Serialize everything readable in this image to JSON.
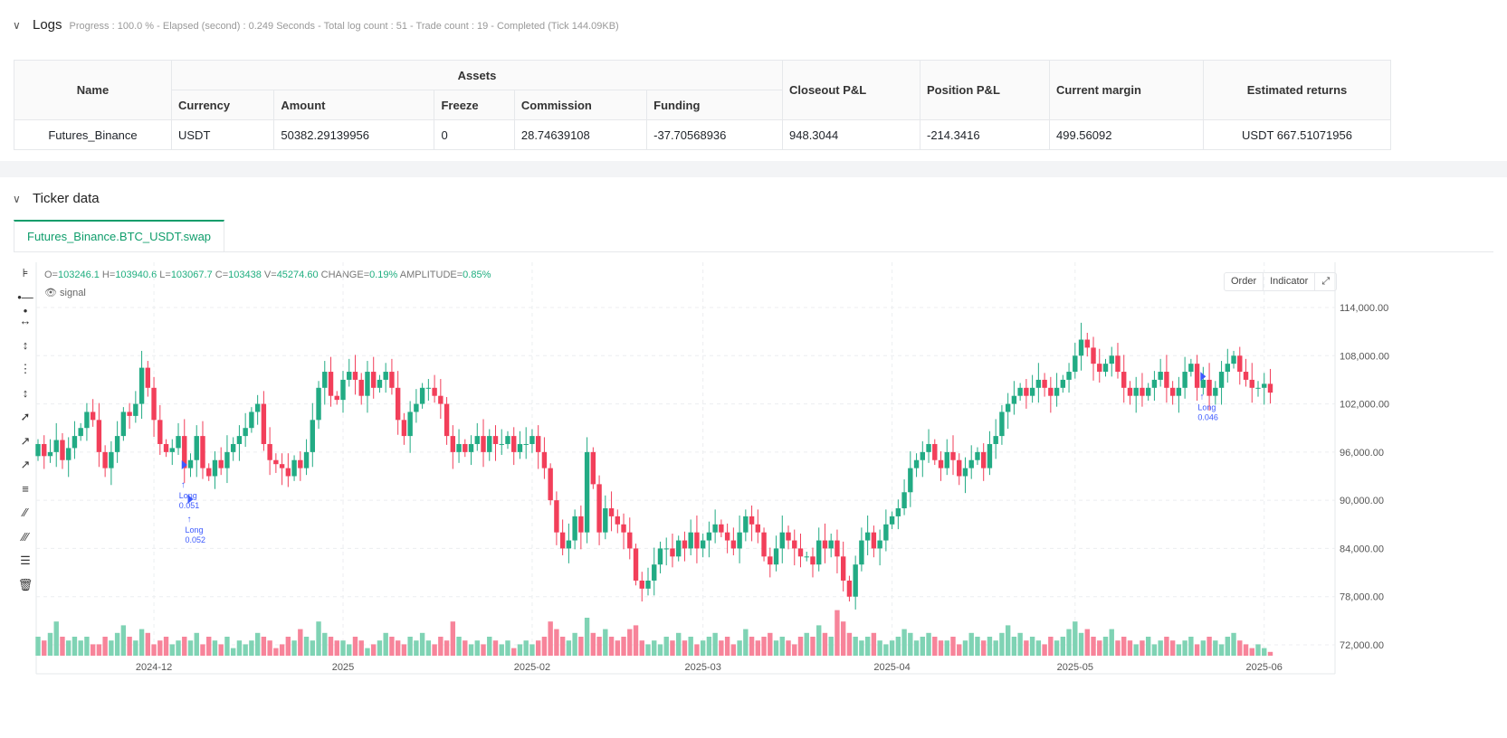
{
  "logs": {
    "title": "Logs",
    "summary": "Progress : 100.0 % - Elapsed (second) : 0.249  Seconds - Total log count : 51 - Trade count : 19 - Completed (Tick 144.09KB)",
    "headers": {
      "name": "Name",
      "assets": "Assets",
      "currency": "Currency",
      "amount": "Amount",
      "freeze": "Freeze",
      "commission": "Commission",
      "funding": "Funding",
      "closeout": "Closeout P&L",
      "position": "Position P&L",
      "margin": "Current margin",
      "returns": "Estimated returns"
    },
    "row": {
      "name": "Futures_Binance",
      "currency": "USDT",
      "amount": "50382.29139956",
      "freeze": "0",
      "commission": "28.74639108",
      "funding": "-37.70568936",
      "closeout": "948.3044",
      "position": "-214.3416",
      "margin": "499.56092",
      "returns": "USDT 667.51071956"
    }
  },
  "ticker": {
    "title": "Ticker data",
    "tab": "Futures_Binance.BTC_USDT.swap",
    "ohlc": {
      "o_label": "O=",
      "o": "103246.1",
      "h_label": " H=",
      "h": "103940.6",
      "l_label": " L=",
      "l": "103067.7",
      "c_label": " C=",
      "c": "103438",
      "v_label": " V=",
      "v": "45274.60",
      "chg_label": " CHANGE=",
      "chg": "0.19%",
      "amp_label": " AMPLITUDE=",
      "amp": "0.85%"
    },
    "signal": "signal",
    "order_btn": "Order",
    "indicator_btn": "Indicator"
  },
  "colors": {
    "up": "#22ab84",
    "down": "#f23f5a",
    "up_vol": "#7fd3b4",
    "down_vol": "#f7849a",
    "signal": "#3d5afe"
  },
  "chart_data": {
    "type": "candlestick",
    "symbol": "BTC_USDT",
    "ylim": [
      70000,
      117000
    ],
    "yticks": [
      72000,
      78000,
      84000,
      90000,
      96000,
      102000,
      108000,
      114000
    ],
    "ytick_labels": [
      "72,000.00",
      "78,000.00",
      "84,000.00",
      "90,000.00",
      "96,000.00",
      "102,000.00",
      "108,000.00",
      "114,000.00"
    ],
    "xticks": [
      {
        "label": "2024-12",
        "index": 19
      },
      {
        "label": "2025",
        "index": 50
      },
      {
        "label": "2025-02",
        "index": 81
      },
      {
        "label": "2025-03",
        "index": 109
      },
      {
        "label": "2025-04",
        "index": 140
      },
      {
        "label": "2025-05",
        "index": 170
      },
      {
        "label": "2025-06",
        "index": 201
      }
    ],
    "closes": [
      97,
      95.5,
      96,
      97.5,
      95,
      96.5,
      98,
      99,
      101,
      100,
      96,
      94,
      96,
      98,
      101,
      100.5,
      102,
      106.5,
      104,
      100,
      97,
      96,
      96.5,
      98,
      94,
      95,
      98,
      94,
      93,
      95,
      94,
      96,
      97,
      98,
      99,
      101,
      102,
      97,
      95,
      94.5,
      94,
      93,
      95,
      94,
      96,
      100,
      104,
      106,
      103,
      102.5,
      105,
      106,
      105,
      103,
      106,
      104,
      105,
      106,
      104,
      100,
      98,
      101,
      102,
      104,
      104,
      103,
      102,
      98,
      96,
      97,
      96,
      97,
      98,
      96,
      98,
      97,
      97,
      98,
      96,
      97,
      97,
      98,
      96,
      94,
      90,
      86,
      84,
      85,
      88,
      86,
      96,
      92,
      86,
      89,
      88,
      87,
      86,
      84,
      80,
      79,
      80,
      82,
      84,
      84,
      83,
      85,
      84,
      86,
      84,
      85,
      86,
      87,
      86,
      85,
      84,
      86,
      88,
      87,
      86,
      83,
      82,
      84,
      86,
      85,
      84,
      83,
      83,
      82,
      85,
      84,
      85,
      83,
      80,
      78,
      82,
      85,
      86,
      84,
      85,
      87,
      88,
      89,
      91,
      94,
      95,
      96,
      97,
      95,
      94,
      96,
      95,
      93,
      94,
      95,
      96,
      94,
      97,
      98,
      101,
      102,
      103,
      104,
      103,
      104,
      105,
      104,
      103,
      104,
      105,
      106,
      108,
      110,
      109,
      107,
      106,
      107,
      108,
      106,
      104,
      103,
      104,
      103,
      104,
      105,
      106,
      104,
      103,
      104,
      106,
      107,
      104,
      105,
      103,
      104,
      106,
      107,
      108,
      106,
      105,
      104,
      104,
      104.5,
      103.4
    ],
    "volumes": [
      5,
      4,
      6,
      9,
      5,
      4,
      5,
      4,
      5,
      3,
      3,
      5,
      4,
      6,
      8,
      5,
      4,
      7,
      6,
      3,
      4,
      5,
      3,
      4,
      5,
      4,
      6,
      3,
      5,
      4,
      3,
      5,
      2,
      4,
      3,
      4,
      6,
      5,
      4,
      2,
      3,
      5,
      4,
      7,
      5,
      4,
      9,
      6,
      5,
      4,
      4,
      3,
      5,
      4,
      2,
      3,
      4,
      6,
      5,
      4,
      3,
      5,
      4,
      6,
      4,
      3,
      5,
      4,
      9,
      5,
      4,
      3,
      4,
      3,
      5,
      4,
      3,
      4,
      2,
      3,
      4,
      3,
      4,
      5,
      9,
      7,
      5,
      4,
      6,
      5,
      10,
      6,
      5,
      7,
      5,
      4,
      5,
      7,
      8,
      4,
      3,
      4,
      3,
      5,
      4,
      6,
      4,
      5,
      3,
      4,
      5,
      6,
      4,
      5,
      3,
      4,
      7,
      5,
      4,
      5,
      6,
      4,
      5,
      4,
      3,
      5,
      6,
      5,
      8,
      6,
      5,
      12,
      9,
      6,
      5,
      4,
      5,
      6,
      4,
      3,
      4,
      5,
      7,
      6,
      4,
      5,
      6,
      5,
      4,
      4,
      5,
      3,
      4,
      6,
      5,
      4,
      5,
      4,
      6,
      8,
      5,
      6,
      4,
      5,
      4,
      3,
      5,
      4,
      5,
      7,
      9,
      6,
      7,
      5,
      4,
      5,
      7,
      4,
      5,
      4,
      3,
      4,
      5,
      3,
      4,
      5,
      4,
      3,
      4,
      5,
      3,
      4,
      5,
      4,
      3,
      5,
      6,
      4,
      3,
      2,
      3,
      2,
      1
    ],
    "signals": [
      {
        "label": "Long",
        "qty": "0.051",
        "index": 24
      },
      {
        "label": "Long",
        "qty": "0.052",
        "index": 25
      },
      {
        "label": "Long",
        "qty": "0.046",
        "index": 191
      }
    ]
  }
}
